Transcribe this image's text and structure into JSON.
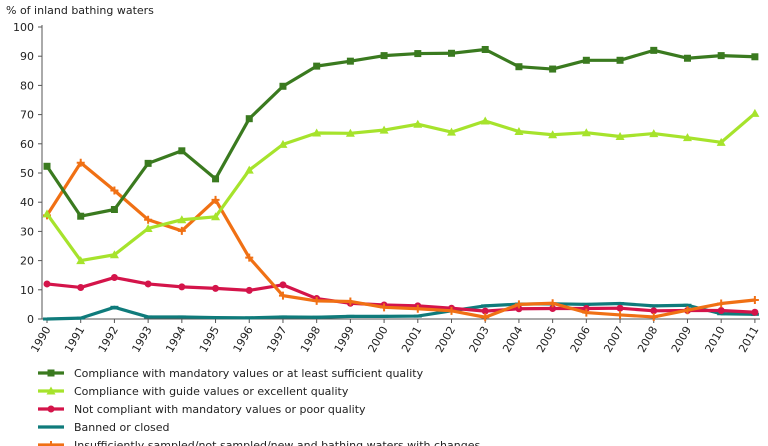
{
  "chart_data": {
    "type": "line",
    "ylabel": "% of inland bathing waters",
    "ylim": [
      0,
      100
    ],
    "yticks": [
      0,
      10,
      20,
      30,
      40,
      50,
      60,
      70,
      80,
      90,
      100
    ],
    "grid": false,
    "legend_position": "bottom",
    "x": [
      "1990",
      "1991",
      "1992",
      "1993",
      "1994",
      "1995",
      "1996",
      "1997",
      "1998",
      "1999",
      "2000",
      "2001",
      "2002",
      "2003",
      "2004",
      "2005",
      "2006",
      "2007",
      "2008",
      "2009",
      "2010",
      "2011"
    ],
    "series": [
      {
        "name": "Compliance with mandatory values or at least sufficient quality",
        "color": "#3a7a1f",
        "marker": "square",
        "values": [
          52.3,
          35.2,
          37.5,
          53.3,
          57.6,
          48.0,
          68.6,
          79.7,
          86.6,
          88.3,
          90.2,
          90.9,
          91.0,
          92.3,
          86.4,
          85.6,
          88.6,
          88.6,
          92.0,
          89.3,
          90.2,
          89.8
        ]
      },
      {
        "name": "Compliance with guide values or excellent quality",
        "color": "#a6e32c",
        "marker": "triangle",
        "values": [
          36.0,
          20.0,
          22.0,
          31.0,
          34.0,
          35.0,
          51.0,
          59.8,
          63.7,
          63.6,
          64.7,
          66.7,
          64.0,
          67.8,
          64.2,
          63.1,
          63.8,
          62.5,
          63.5,
          62.1,
          60.5,
          70.4
        ]
      },
      {
        "name": "Not compliant with mandatory values or poor quality",
        "color": "#d4144a",
        "marker": "circle",
        "values": [
          12.0,
          10.8,
          14.2,
          12.0,
          11.0,
          10.5,
          9.8,
          11.7,
          7.0,
          5.4,
          4.8,
          4.5,
          3.7,
          2.7,
          3.5,
          3.6,
          3.6,
          3.7,
          2.8,
          2.9,
          2.9,
          2.3
        ]
      },
      {
        "name": "Banned or closed",
        "color": "#0f7b7b",
        "marker": "dash",
        "values": [
          0.0,
          0.3,
          4.0,
          0.7,
          0.7,
          0.5,
          0.4,
          0.7,
          0.6,
          0.9,
          0.9,
          1.0,
          2.8,
          4.5,
          5.1,
          5.2,
          5.0,
          5.3,
          4.5,
          4.7,
          1.8,
          1.6
        ]
      },
      {
        "name": "Insufficiently sampled/not sampled/new and bathing waters with changes",
        "color": "#f07014",
        "marker": "plus",
        "values": [
          35.5,
          53.5,
          44.0,
          34.0,
          30.2,
          40.8,
          21.0,
          8.0,
          6.2,
          6.0,
          4.0,
          3.5,
          2.8,
          0.6,
          5.0,
          5.4,
          2.2,
          1.4,
          0.7,
          3.0,
          5.3,
          6.5
        ]
      }
    ]
  }
}
